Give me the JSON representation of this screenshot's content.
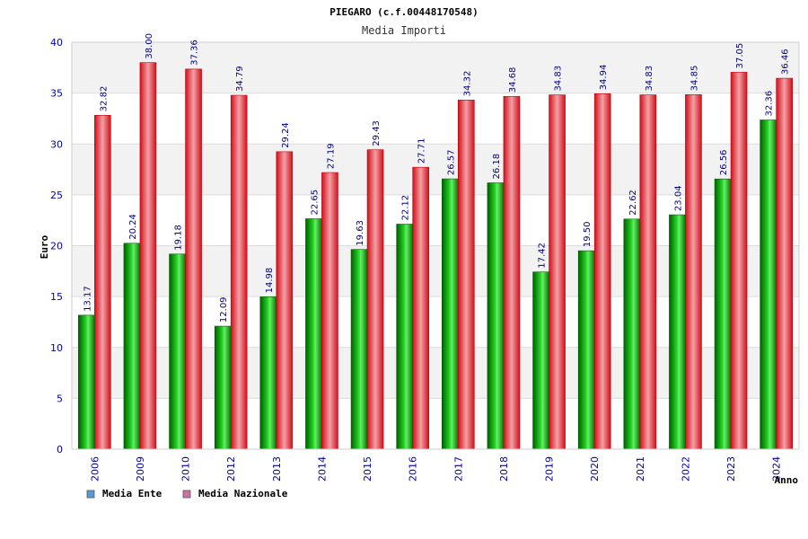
{
  "chart_data": {
    "type": "bar",
    "title": "PIEGARO (c.f.00448170548)",
    "subtitle": "Media Importi",
    "xlabel": "Anno",
    "ylabel": "Euro",
    "ylim": [
      0,
      40
    ],
    "yticks": [
      0,
      5,
      10,
      15,
      20,
      25,
      30,
      35,
      40
    ],
    "categories": [
      "2006",
      "2009",
      "2010",
      "2012",
      "2013",
      "2014",
      "2015",
      "2016",
      "2017",
      "2018",
      "2019",
      "2020",
      "2021",
      "2022",
      "2023",
      "2024"
    ],
    "series": [
      {
        "name": "Media Ente",
        "values": [
          13.17,
          20.24,
          19.18,
          12.09,
          14.98,
          22.65,
          19.63,
          22.12,
          26.57,
          26.18,
          17.42,
          19.5,
          22.62,
          23.04,
          26.56,
          32.36
        ],
        "labels": [
          "13.17",
          "20.24",
          "19.18",
          "12.09",
          "14.98",
          "22.65",
          "19.63",
          "22.12",
          "26.57",
          "26.18",
          "17.42",
          "19.50",
          "22.62",
          "23.04",
          "26.56",
          "32.36"
        ]
      },
      {
        "name": "Media Nazionale",
        "values": [
          32.82,
          38.0,
          37.36,
          34.79,
          29.24,
          27.19,
          29.43,
          27.71,
          34.32,
          34.68,
          34.83,
          34.94,
          34.83,
          34.85,
          37.05,
          36.46
        ],
        "labels": [
          "32.82",
          "38.00",
          "37.36",
          "34.79",
          "29.24",
          "27.19",
          "29.43",
          "27.71",
          "34.32",
          "34.68",
          "34.83",
          "34.94",
          "34.83",
          "34.85",
          "37.05",
          "36.46"
        ]
      }
    ],
    "legend": [
      {
        "label": "Media Ente",
        "color": "#5b9bd5"
      },
      {
        "label": "Media Nazionale",
        "color": "#d070a0"
      }
    ],
    "legend_placement": "bottom-left",
    "grid": true,
    "colors": {
      "ente": "#00b400",
      "nazionale": "#e8202a",
      "band": "#f2f2f2",
      "axis_text": "#0000aa",
      "value_text": "#000080"
    }
  }
}
